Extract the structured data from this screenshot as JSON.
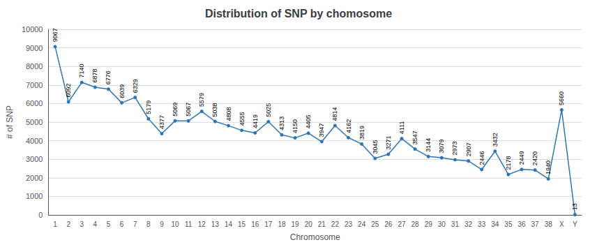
{
  "chart_data": {
    "type": "line",
    "title": "Distribution of SNP by chomosome",
    "xlabel": "Chromosome",
    "ylabel": "# of SNP",
    "categories": [
      "1",
      "2",
      "3",
      "4",
      "5",
      "6",
      "7",
      "8",
      "9",
      "10",
      "11",
      "12",
      "13",
      "14",
      "15",
      "16",
      "17",
      "18",
      "19",
      "20",
      "21",
      "22",
      "23",
      "24",
      "25",
      "26",
      "27",
      "28",
      "29",
      "30",
      "31",
      "32",
      "33",
      "34",
      "35",
      "36",
      "37",
      "38",
      "X",
      "Y"
    ],
    "values": [
      9067,
      6092,
      7140,
      6878,
      6776,
      6039,
      6329,
      5179,
      4377,
      5069,
      5067,
      5579,
      5038,
      4808,
      4555,
      4419,
      5025,
      4313,
      4150,
      4405,
      3947,
      4814,
      4162,
      3819,
      3045,
      3271,
      4111,
      3547,
      3144,
      3079,
      2973,
      2907,
      2446,
      3432,
      2178,
      2449,
      2420,
      1940,
      5660,
      13
    ],
    "color": "#2e75b6",
    "marker": "circle",
    "ylim": [
      0,
      10000
    ],
    "yticks": [
      0,
      1000,
      2000,
      3000,
      4000,
      5000,
      6000,
      7000,
      8000,
      9000,
      10000
    ],
    "grid": true,
    "data_labels": true
  }
}
